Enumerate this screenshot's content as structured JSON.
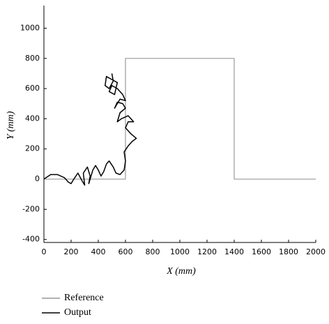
{
  "chart_data": {
    "type": "line",
    "x_label": "X (mm)",
    "y_label": "Y (mm)",
    "xlim": [
      0,
      2000
    ],
    "ylim": [
      -420,
      1150
    ],
    "xticks": [
      0,
      200,
      400,
      600,
      800,
      1000,
      1200,
      1400,
      1600,
      1800,
      2000
    ],
    "yticks": [
      -400,
      -200,
      0,
      200,
      400,
      600,
      800,
      1000
    ],
    "series": [
      {
        "name": "Reference",
        "color": "#999999",
        "x": [
          0,
          600,
          600,
          1400,
          1400,
          2000
        ],
        "values": [
          0,
          0,
          800,
          800,
          0,
          0
        ]
      },
      {
        "name": "Output",
        "color": "#000000",
        "x": [
          0,
          50,
          100,
          150,
          180,
          200,
          220,
          250,
          280,
          300,
          290,
          320,
          340,
          330,
          360,
          380,
          400,
          420,
          440,
          460,
          480,
          510,
          530,
          560,
          590,
          600,
          590,
          620,
          650,
          680,
          640,
          600,
          620,
          660,
          620,
          570,
          540,
          560,
          600,
          580,
          540,
          520,
          560,
          600,
          580,
          540,
          500,
          480,
          520,
          540,
          500,
          460,
          450,
          480,
          510,
          500
        ],
        "values": [
          0,
          30,
          30,
          10,
          -20,
          -30,
          0,
          40,
          -10,
          -40,
          40,
          80,
          20,
          -30,
          60,
          90,
          60,
          20,
          50,
          100,
          120,
          80,
          40,
          30,
          60,
          120,
          180,
          220,
          250,
          270,
          300,
          340,
          380,
          380,
          420,
          400,
          380,
          440,
          470,
          500,
          510,
          470,
          530,
          520,
          560,
          600,
          620,
          580,
          560,
          640,
          660,
          680,
          620,
          600,
          650,
          700
        ]
      }
    ]
  }
}
